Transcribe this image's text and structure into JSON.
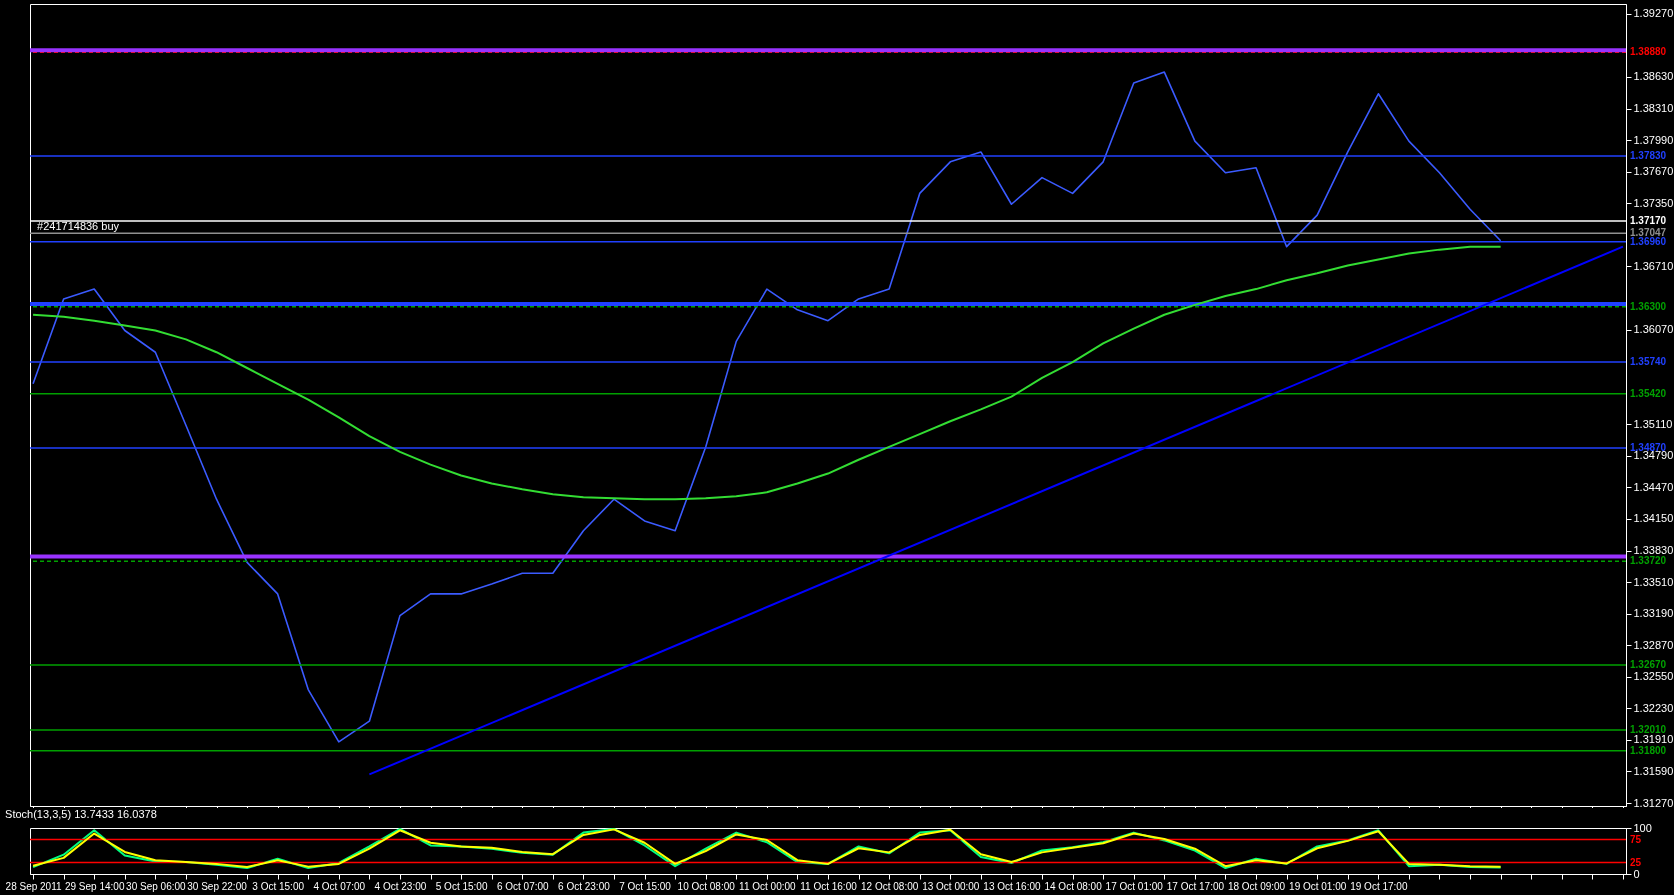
{
  "chart_data": [
    {
      "type": "line",
      "tick_labels": "y",
      "categories": [
        "28 Sep 2011",
        null,
        "29 Sep 14:00",
        null,
        "30 Sep 06:00",
        null,
        "30 Sep 22:00",
        null,
        "3 Oct 15:00",
        null,
        "4 Oct 07:00",
        null,
        "4 Oct 23:00",
        null,
        "5 Oct 15:00",
        null,
        "6 Oct 07:00",
        null,
        "6 Oct 23:00",
        null,
        "7 Oct 15:00",
        null,
        "10 Oct 08:00",
        null,
        "11 Oct 00:00",
        null,
        "11 Oct 16:00",
        null,
        "12 Oct 08:00",
        null,
        "13 Oct 00:00",
        null,
        "13 Oct 16:00",
        null,
        "14 Oct 08:00",
        null,
        "17 Oct 01:00",
        null,
        "17 Oct 17:00",
        null,
        "18 Oct 09:00",
        null,
        "19 Oct 01:00",
        null,
        "19 Oct 17:00",
        null,
        null,
        null,
        null,
        null,
        null,
        null,
        null
      ],
      "series": [
        {
          "color": "#3b5bff",
          "values": [
            1.3552,
            1.3638,
            1.3648,
            1.3606,
            1.3584,
            1.351,
            1.3435,
            1.3371,
            1.3339,
            1.3242,
            1.3189,
            1.321,
            1.3317,
            1.3339,
            1.3339,
            1.3349,
            1.336,
            1.336,
            1.3403,
            1.3435,
            1.3413,
            1.3403,
            1.3488,
            1.3595,
            1.3648,
            1.3627,
            1.3616,
            1.3638,
            1.3648,
            1.3745,
            1.3777,
            1.3787,
            1.3734,
            1.3761,
            1.3745,
            1.3777,
            1.3857,
            1.3868,
            1.3798,
            1.3766,
            1.3771,
            1.3691,
            1.3723,
            1.3787,
            1.3846,
            1.3798,
            1.3766,
            1.3729,
            1.3697,
            null,
            null,
            null,
            null
          ]
        },
        {
          "color": "#33dd33",
          "values": [
            1.3622,
            1.362,
            1.3616,
            1.3611,
            1.3606,
            1.3597,
            1.3584,
            1.3568,
            1.3552,
            1.3536,
            1.3518,
            1.3499,
            1.3483,
            1.347,
            1.3459,
            1.3451,
            1.3445,
            1.344,
            1.3437,
            1.3436,
            1.3435,
            1.3435,
            1.3436,
            1.3438,
            1.3442,
            1.3451,
            1.3461,
            1.3475,
            1.3488,
            1.3501,
            1.3514,
            1.3526,
            1.3539,
            1.3558,
            1.3574,
            1.3593,
            1.3608,
            1.3622,
            1.3632,
            1.3641,
            1.3648,
            1.3657,
            1.3664,
            1.3672,
            1.3678,
            1.3684,
            1.3688,
            1.3691,
            1.3691,
            null,
            null,
            null,
            null
          ]
        },
        {
          "color": "#0000ff",
          "values": [
            null,
            null,
            null,
            null,
            null,
            null,
            null,
            null,
            null,
            null,
            null,
            1.3156,
            null,
            null,
            null,
            null,
            null,
            null,
            null,
            null,
            null,
            null,
            null,
            null,
            null,
            null,
            null,
            null,
            null,
            null,
            null,
            null,
            null,
            null,
            null,
            null,
            null,
            null,
            null,
            null,
            null,
            null,
            null,
            null,
            null,
            null,
            null,
            null,
            null,
            null,
            null,
            null,
            1.3691
          ]
        }
      ],
      "ylim": [
        1.3124,
        1.3937
      ],
      "yticks": [
        {
          "value": 1.3127,
          "label": "1.31270"
        },
        {
          "value": 1.3159,
          "label": "1.31590"
        },
        {
          "value": 1.3191,
          "label": "1.31910"
        },
        {
          "value": 1.3223,
          "label": "1.32230"
        },
        {
          "value": 1.3255,
          "label": "1.32550"
        },
        {
          "value": 1.3287,
          "label": "1.32870"
        },
        {
          "value": 1.3319,
          "label": "1.33190"
        },
        {
          "value": 1.3351,
          "label": "1.33510"
        },
        {
          "value": 1.3383,
          "label": "1.33830"
        },
        {
          "value": 1.3415,
          "label": "1.34150"
        },
        {
          "value": 1.3447,
          "label": "1.34470"
        },
        {
          "value": 1.3479,
          "label": "1.34790"
        },
        {
          "value": 1.3511,
          "label": "1.35110"
        },
        {
          "value": 1.3607,
          "label": "1.36070"
        },
        {
          "value": 1.3671,
          "label": "1.36710"
        },
        {
          "value": 1.3735,
          "label": "1.37350"
        },
        {
          "value": 1.3767,
          "label": "1.37670"
        },
        {
          "value": 1.3799,
          "label": "1.37990"
        },
        {
          "value": 1.3831,
          "label": "1.38310"
        },
        {
          "value": 1.3863,
          "label": "1.38630"
        },
        {
          "value": 1.3927,
          "label": "1.39270"
        }
      ],
      "ref_lines": [
        {
          "axis": "y",
          "value": 1.389,
          "color": "#9933ff"
        },
        {
          "axis": "y",
          "value": 1.3888,
          "label": "1.38880",
          "color": "#ff0000",
          "line_style": "dashed"
        },
        {
          "axis": "y",
          "value": 1.3783,
          "label": "1.37830",
          "color": "#2040ff"
        },
        {
          "axis": "y",
          "value": 1.3717,
          "label": "1.37170",
          "color": "#ffffff"
        },
        {
          "axis": "y",
          "value": 1.37047,
          "label": "1.37047",
          "color": "#909090"
        },
        {
          "axis": "y",
          "value": 1.3696,
          "label": "1.36960",
          "color": "#2040ff"
        },
        {
          "axis": "y",
          "value": 1.3633,
          "color": "#2040ff"
        },
        {
          "axis": "y",
          "value": 1.363,
          "label": "1.36300",
          "color": "#00a000",
          "line_style": "dashed"
        },
        {
          "axis": "y",
          "value": 1.3574,
          "label": "1.35740",
          "color": "#2040ff"
        },
        {
          "axis": "y",
          "value": 1.3542,
          "label": "1.35420",
          "color": "#00a000"
        },
        {
          "axis": "y",
          "value": 1.3487,
          "label": "1.34870",
          "color": "#2040ff"
        },
        {
          "axis": "y",
          "value": 1.3377,
          "color": "#9933ff"
        },
        {
          "axis": "y",
          "value": 1.3372,
          "label": "1.33720",
          "color": "#00a000",
          "line_style": "dashed"
        },
        {
          "axis": "y",
          "value": 1.3267,
          "label": "1.32670",
          "color": "#00a000"
        },
        {
          "axis": "y",
          "value": 1.3201,
          "label": "1.32010",
          "color": "#00a000"
        },
        {
          "axis": "y",
          "value": 1.318,
          "label": "1.31800",
          "color": "#00a000"
        }
      ],
      "annotations": [
        {
          "text": "#241714836 buy",
          "x": "28 Sep 2011",
          "y": 1.37047
        }
      ]
    },
    {
      "type": "line",
      "title": "Stoch(13,3,5) 13.7433 16.0378",
      "categories": [
        "28 Sep 2011",
        null,
        "29 Sep 14:00",
        null,
        "30 Sep 06:00",
        null,
        "30 Sep 22:00",
        null,
        "3 Oct 15:00",
        null,
        "4 Oct 07:00",
        null,
        "4 Oct 23:00",
        null,
        "5 Oct 15:00",
        null,
        "6 Oct 07:00",
        null,
        "6 Oct 23:00",
        null,
        "7 Oct 15:00",
        null,
        "10 Oct 08:00",
        null,
        "11 Oct 00:00",
        null,
        "11 Oct 16:00",
        null,
        "12 Oct 08:00",
        null,
        "13 Oct 00:00",
        null,
        "13 Oct 16:00",
        null,
        "14 Oct 08:00",
        null,
        "17 Oct 01:00",
        null,
        "17 Oct 17:00",
        null,
        "18 Oct 09:00",
        null,
        "19 Oct 01:00",
        null,
        "19 Oct 17:00",
        null,
        null,
        null,
        null,
        null,
        null,
        null,
        null
      ],
      "series": [
        {
          "color": "#00ff80",
          "values": [
            15,
            42,
            95,
            40,
            27,
            26,
            20,
            13,
            33,
            13,
            24,
            60,
            98,
            62,
            60,
            55,
            46,
            42,
            90,
            98,
            62,
            17,
            55,
            90,
            69,
            26,
            22,
            60,
            45,
            90,
            95,
            37,
            24,
            51,
            58,
            69,
            90,
            73,
            51,
            13,
            33,
            22,
            60,
            73,
            95,
            17,
            20,
            15,
            14,
            null,
            null,
            null,
            null
          ]
        },
        {
          "color": "#ffff00",
          "values": [
            18,
            35,
            88,
            48,
            30,
            26,
            22,
            15,
            30,
            16,
            22,
            55,
            95,
            68,
            60,
            57,
            48,
            43,
            85,
            97,
            68,
            22,
            50,
            86,
            74,
            30,
            22,
            56,
            47,
            85,
            96,
            43,
            26,
            47,
            57,
            67,
            88,
            76,
            55,
            17,
            30,
            23,
            56,
            72,
            93,
            22,
            20,
            17,
            16,
            null,
            null,
            null,
            null
          ]
        }
      ],
      "ylim": [
        0,
        100
      ],
      "yticks": [
        0,
        100
      ],
      "ref_lines": [
        {
          "axis": "y",
          "value": 75,
          "label": "75",
          "color": "#ff0000"
        },
        {
          "axis": "y",
          "value": 25,
          "label": "25",
          "color": "#ff0000"
        }
      ]
    }
  ]
}
